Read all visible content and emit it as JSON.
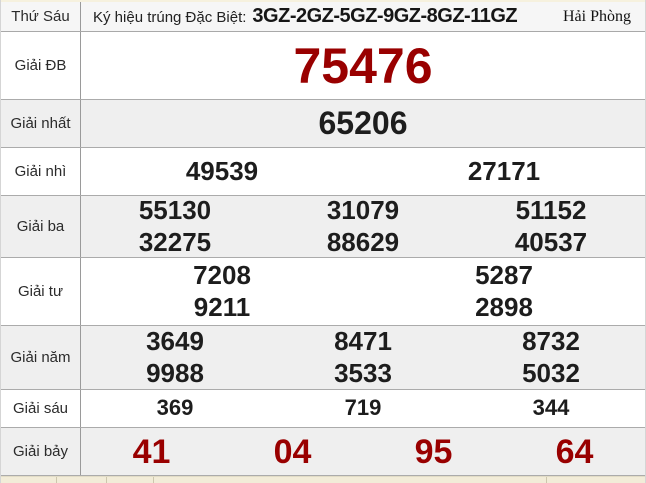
{
  "header": {
    "day": "Thứ Sáu",
    "symbol_label": "Ký hiệu trúng Đặc Biệt:",
    "symbol_codes": "3GZ-2GZ-5GZ-9GZ-8GZ-11GZ",
    "province": "Hải Phòng"
  },
  "colors": {
    "special_red": "#990000",
    "number_black": "#1d1d1d",
    "alt_row_bg": "#efefef",
    "bottom_strip_bg": "#f2ecd8"
  },
  "prizes": [
    {
      "label": "Giải ĐB",
      "rows": [
        [
          "75476"
        ]
      ]
    },
    {
      "label": "Giải nhất",
      "rows": [
        [
          "65206"
        ]
      ]
    },
    {
      "label": "Giải nhì",
      "rows": [
        [
          "49539",
          "27171"
        ]
      ]
    },
    {
      "label": "Giải ba",
      "rows": [
        [
          "55130",
          "31079",
          "51152"
        ],
        [
          "32275",
          "88629",
          "40537"
        ]
      ]
    },
    {
      "label": "Giải tư",
      "rows": [
        [
          "7208",
          "5287"
        ],
        [
          "9211",
          "2898"
        ]
      ]
    },
    {
      "label": "Giải năm",
      "rows": [
        [
          "3649",
          "8471",
          "8732"
        ],
        [
          "9988",
          "3533",
          "5032"
        ]
      ]
    },
    {
      "label": "Giải sáu",
      "rows": [
        [
          "369",
          "719",
          "344"
        ]
      ]
    },
    {
      "label": "Giải bảy",
      "rows": [
        [
          "41",
          "04",
          "95",
          "64"
        ]
      ]
    }
  ]
}
